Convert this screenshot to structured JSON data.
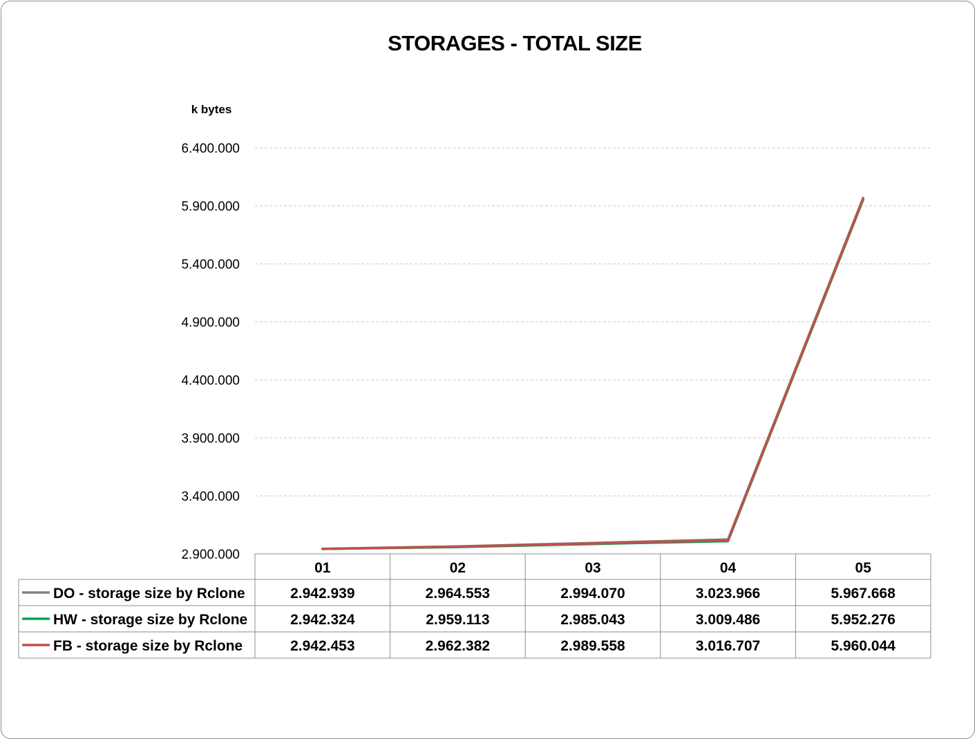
{
  "chart_data": {
    "type": "line",
    "title": "STORAGES - TOTAL SIZE",
    "ylabel": "k bytes",
    "xlabel": "",
    "categories": [
      "01",
      "02",
      "03",
      "04",
      "05"
    ],
    "ylim": [
      2900000,
      6400000
    ],
    "yticks": [
      2900000,
      3400000,
      3900000,
      4400000,
      4900000,
      5400000,
      5900000,
      6400000
    ],
    "ytick_labels": [
      "2.900.000",
      "3.400.000",
      "3.900.000",
      "4.400.000",
      "4.900.000",
      "5.400.000",
      "5.900.000",
      "6.400.000"
    ],
    "grid": true,
    "legend": "data-table",
    "series": [
      {
        "name": "DO - storage size by Rclone",
        "color": "#808080",
        "values": [
          2942939,
          2964553,
          2994070,
          3023966,
          5967668
        ],
        "labels": [
          "2.942.939",
          "2.964.553",
          "2.994.070",
          "3.023.966",
          "5.967.668"
        ]
      },
      {
        "name": "HW - storage size by Rclone",
        "color": "#00A550",
        "values": [
          2942324,
          2959113,
          2985043,
          3009486,
          5952276
        ],
        "labels": [
          "2.942.324",
          "2.959.113",
          "2.985.043",
          "3.009.486",
          "5.952.276"
        ]
      },
      {
        "name": "FB - storage size by Rclone",
        "color": "#C0504D",
        "values": [
          2942453,
          2962382,
          2989558,
          3016707,
          5960044
        ],
        "labels": [
          "2.942.453",
          "2.962.382",
          "2.989.558",
          "3.016.707",
          "5.960.044"
        ]
      }
    ]
  }
}
